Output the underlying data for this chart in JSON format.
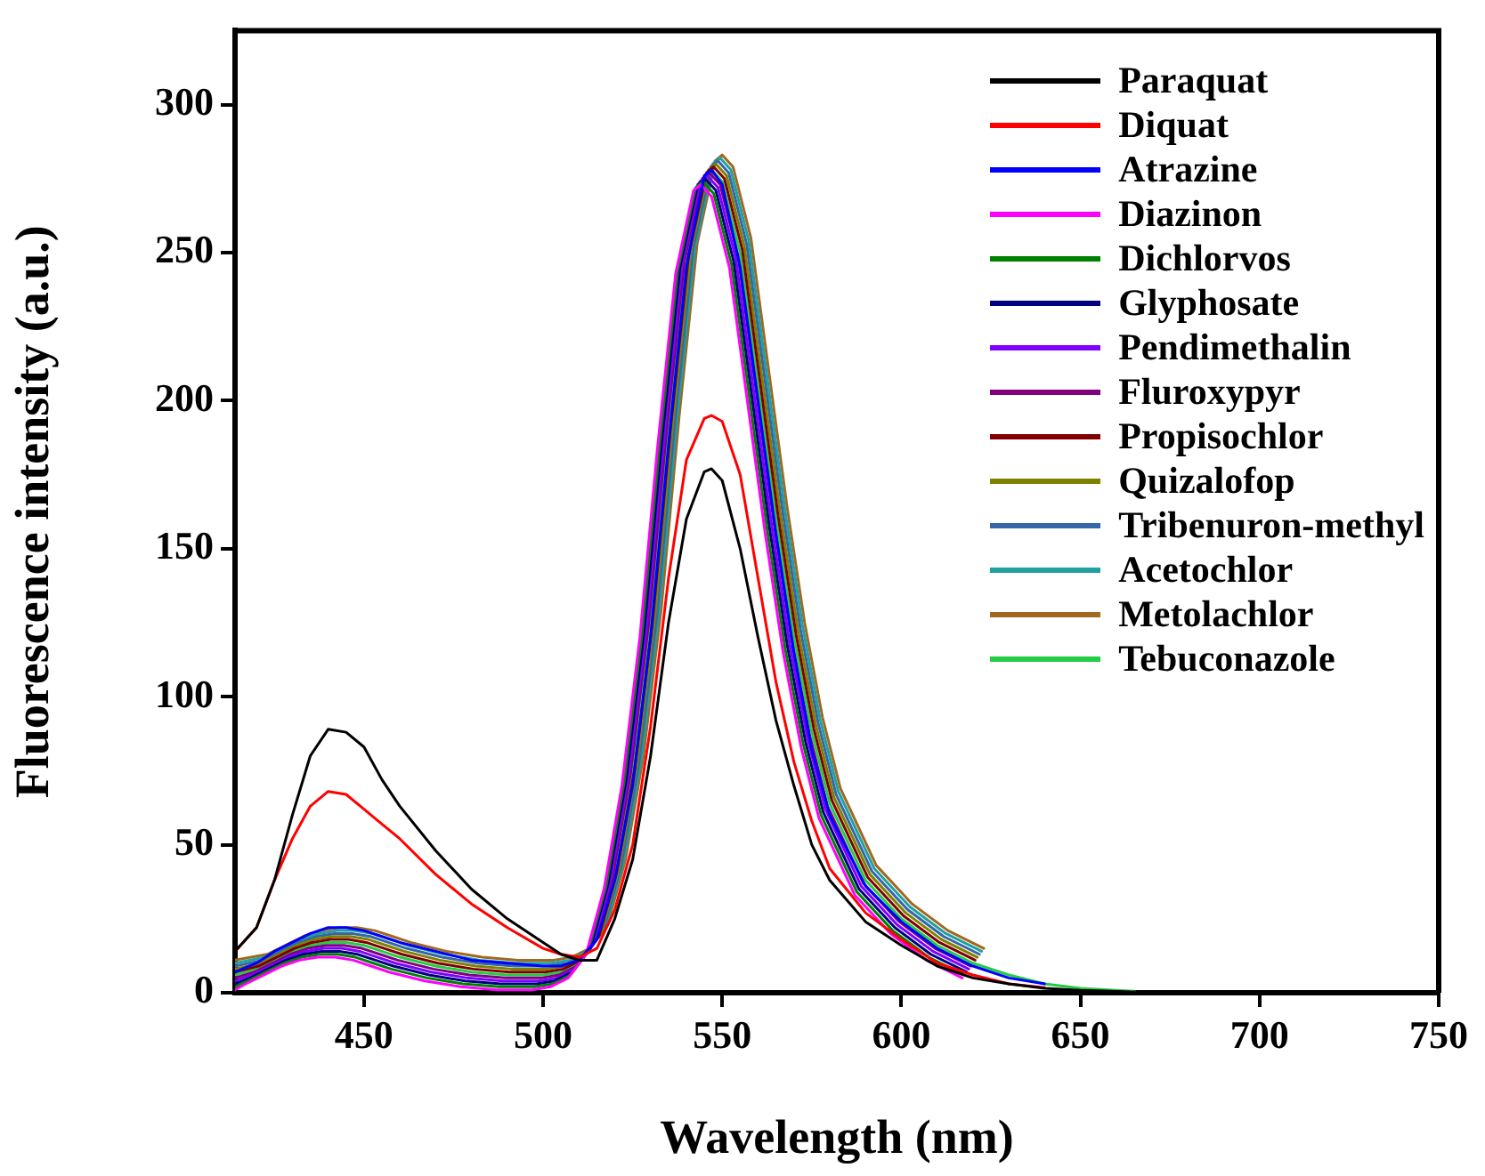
{
  "chart_data": {
    "type": "line",
    "xlabel": "Wavelength (nm)",
    "ylabel": "Fluorescence intensity (a.u.)",
    "xlim": [
      414,
      750
    ],
    "xticks": [
      450,
      500,
      550,
      600,
      650,
      700,
      750
    ],
    "ylim": [
      0,
      325
    ],
    "yticks": [
      0,
      50,
      100,
      150,
      200,
      250,
      300
    ],
    "grid": false,
    "legend": "top right",
    "marker": "none",
    "line_style": "solid",
    "x": [
      414,
      420,
      425,
      430,
      435,
      440,
      445,
      450,
      455,
      460,
      470,
      480,
      490,
      500,
      505,
      510,
      515,
      520,
      525,
      530,
      535,
      540,
      545,
      547,
      550,
      555,
      560,
      565,
      570,
      575,
      580,
      590,
      600,
      610,
      620,
      630,
      640,
      650,
      665
    ],
    "series": [
      {
        "name": "Paraquat",
        "color": "#000000",
        "values": [
          14,
          22,
          38,
          60,
          80,
          89,
          88,
          83,
          72,
          63,
          48,
          35,
          25,
          17,
          13,
          11,
          11,
          25,
          45,
          80,
          125,
          160,
          176,
          177,
          173,
          150,
          120,
          92,
          70,
          50,
          38,
          24,
          16,
          9,
          5,
          3,
          1.5,
          0.8,
          0.3
        ]
      },
      {
        "name": "Diquat",
        "color": "#ff0000",
        "values": [
          14,
          22,
          38,
          52,
          63,
          68,
          67,
          62,
          57,
          52,
          40,
          30,
          22,
          15,
          13,
          12,
          15,
          28,
          50,
          90,
          140,
          180,
          194,
          195,
          193,
          175,
          140,
          105,
          78,
          58,
          42,
          27,
          18,
          10,
          6,
          3,
          1.7,
          null,
          null
        ]
      },
      {
        "name": "Atrazine",
        "color": "#0000ff",
        "values": [
          7,
          10,
          14,
          17,
          20,
          22,
          22,
          21,
          19,
          17,
          14,
          11,
          10,
          9,
          9,
          11,
          18,
          38,
          70,
          120,
          185,
          245,
          276,
          278,
          273,
          245,
          200,
          155,
          115,
          82,
          60,
          36,
          24,
          15,
          9,
          5,
          3,
          null,
          null
        ]
      },
      {
        "name": "Diazinon",
        "color": "#ff00ff",
        "x": [
          414,
          417,
          422,
          427,
          432,
          437,
          442,
          447,
          452,
          457,
          467,
          477,
          487,
          497,
          502,
          507,
          512,
          517,
          522,
          527,
          532,
          537,
          542,
          544,
          547,
          552,
          557,
          562,
          567,
          572,
          577,
          587,
          597,
          607,
          617
        ],
        "values": [
          1,
          3,
          6,
          9,
          11,
          12,
          12,
          11,
          9,
          7,
          4,
          2,
          1,
          1,
          2,
          5,
          13,
          35,
          70,
          120,
          185,
          243,
          271,
          273,
          269,
          245,
          200,
          155,
          115,
          83,
          59,
          33,
          20,
          11,
          5
        ]
      },
      {
        "name": "Dichlorvos",
        "color": "#008000",
        "x": [
          414,
          417.6,
          422.6,
          427.6,
          432.6,
          437.6,
          442.6,
          447.6,
          452.6,
          457.6,
          467.6,
          477.6,
          487.6,
          497.6,
          502.6,
          507.6,
          512.6,
          517.6,
          522.6,
          527.6,
          532.6,
          537.6,
          542.6,
          544.6,
          547.6,
          552.6,
          557.6,
          562.6,
          567.6,
          572.6,
          577.6,
          587.6,
          597.6,
          607.6,
          617.6
        ],
        "values": [
          2,
          4,
          7,
          10,
          12,
          13,
          13,
          12,
          10,
          8,
          5,
          3,
          2,
          2,
          3,
          6,
          14,
          36,
          71,
          121,
          186,
          244,
          272,
          274,
          270,
          246,
          201,
          156,
          116,
          84,
          60,
          34,
          21,
          12,
          6
        ]
      },
      {
        "name": "Glyphosate",
        "color": "#000080",
        "x": [
          414,
          418.2,
          423.2,
          428.2,
          433.2,
          438.2,
          443.2,
          448.2,
          453.2,
          458.2,
          468.2,
          478.2,
          488.2,
          498.2,
          503.2,
          508.2,
          513.2,
          518.2,
          523.2,
          528.2,
          533.2,
          538.2,
          543.2,
          545.2,
          548.2,
          553.2,
          558.2,
          563.2,
          568.2,
          573.2,
          578.2,
          588.2,
          598.2,
          608.2,
          618.2
        ],
        "values": [
          3,
          5,
          8,
          11,
          13,
          14,
          14,
          13,
          11,
          9,
          6,
          4,
          3,
          3,
          4,
          7,
          15,
          37,
          72,
          122,
          187,
          245,
          273,
          275,
          271,
          247,
          202,
          157,
          117,
          85,
          61,
          35,
          22,
          13,
          7
        ]
      },
      {
        "name": "Pendimethalin",
        "color": "#8000ff",
        "x": [
          414,
          418.8,
          423.8,
          428.8,
          433.8,
          438.8,
          443.8,
          448.8,
          453.8,
          458.8,
          468.8,
          478.8,
          488.8,
          498.8,
          503.8,
          508.8,
          513.8,
          518.8,
          523.8,
          528.8,
          533.8,
          538.8,
          543.8,
          545.8,
          548.8,
          553.8,
          558.8,
          563.8,
          568.8,
          573.8,
          578.8,
          588.8,
          598.8,
          608.8,
          618.8
        ],
        "values": [
          4,
          6,
          9,
          12,
          14,
          15,
          15,
          14,
          12,
          10,
          7,
          5,
          4,
          4,
          5,
          8,
          16,
          38,
          73,
          123,
          188,
          246,
          274,
          276,
          272,
          248,
          203,
          158,
          118,
          86,
          62,
          36,
          23,
          14,
          8
        ]
      },
      {
        "name": "Fluroxypyr",
        "color": "#800080",
        "x": [
          414,
          419.4,
          424.4,
          429.4,
          434.4,
          439.4,
          444.4,
          449.4,
          454.4,
          459.4,
          469.4,
          479.4,
          489.4,
          499.4,
          504.4,
          509.4,
          514.4,
          519.4,
          524.4,
          529.4,
          534.4,
          539.4,
          544.4,
          546.4,
          549.4,
          554.4,
          559.4,
          564.4,
          569.4,
          574.4,
          579.4,
          589.4,
          599.4,
          609.4,
          619.4
        ],
        "values": [
          5,
          7,
          10,
          13,
          15,
          16,
          16,
          15,
          13,
          11,
          8,
          6,
          5,
          5,
          6,
          9,
          17,
          39,
          74,
          124,
          189,
          247,
          275,
          277,
          273,
          249,
          204,
          159,
          119,
          87,
          63,
          37,
          24,
          15,
          9
        ]
      },
      {
        "name": "Propisochlor",
        "color": "#800000",
        "x": [
          414,
          420.6,
          425.6,
          430.6,
          435.6,
          440.6,
          445.6,
          450.6,
          455.6,
          460.6,
          470.6,
          480.6,
          490.6,
          500.6,
          505.6,
          510.6,
          515.6,
          520.6,
          525.6,
          530.6,
          535.6,
          540.6,
          545.6,
          547.6,
          550.6,
          555.6,
          560.6,
          565.6,
          570.6,
          575.6,
          580.6,
          590.6,
          600.6,
          610.6,
          620.6
        ],
        "values": [
          7,
          9,
          12,
          15,
          17,
          18,
          18,
          17,
          15,
          13,
          10,
          8,
          7,
          7,
          8,
          11,
          19,
          41,
          76,
          126,
          191,
          249,
          277,
          279,
          275,
          251,
          206,
          161,
          121,
          89,
          65,
          39,
          26,
          17,
          11
        ]
      },
      {
        "name": "Quizalofop",
        "color": "#808000",
        "x": [
          414,
          421.2,
          426.2,
          431.2,
          436.2,
          441.2,
          446.2,
          451.2,
          456.2,
          461.2,
          471.2,
          481.2,
          491.2,
          501.2,
          506.2,
          511.2,
          516.2,
          521.2,
          526.2,
          531.2,
          536.2,
          541.2,
          546.2,
          548.2,
          551.2,
          556.2,
          561.2,
          566.2,
          571.2,
          576.2,
          581.2,
          591.2,
          601.2,
          611.2,
          621.2
        ],
        "values": [
          8,
          10,
          13,
          16,
          18,
          19,
          19,
          18,
          16,
          14,
          11,
          9,
          8,
          8,
          9,
          12,
          20,
          42,
          77,
          127,
          192,
          250,
          278,
          280,
          276,
          252,
          207,
          162,
          122,
          90,
          66,
          40,
          27,
          18,
          12
        ]
      },
      {
        "name": "Tribenuron-methyl",
        "color": "#3366aa",
        "x": [
          414,
          421.8,
          426.8,
          431.8,
          436.8,
          441.8,
          446.8,
          451.8,
          456.8,
          461.8,
          471.8,
          481.8,
          491.8,
          501.8,
          506.8,
          511.8,
          516.8,
          521.8,
          526.8,
          531.8,
          536.8,
          541.8,
          546.8,
          548.8,
          551.8,
          556.8,
          561.8,
          566.8,
          571.8,
          576.8,
          581.8,
          591.8,
          601.8,
          611.8,
          621.8
        ],
        "values": [
          9,
          11,
          14,
          17,
          19,
          20,
          20,
          19,
          17,
          15,
          12,
          10,
          9,
          9,
          10,
          13,
          21,
          43,
          78,
          128,
          193,
          251,
          279,
          281,
          277,
          253,
          208,
          163,
          123,
          91,
          67,
          41,
          28,
          19,
          13
        ]
      },
      {
        "name": "Acetochlor",
        "color": "#20a0a0",
        "x": [
          414,
          422.4,
          427.4,
          432.4,
          437.4,
          442.4,
          447.4,
          452.4,
          457.4,
          462.4,
          472.4,
          482.4,
          492.4,
          502.4,
          507.4,
          512.4,
          517.4,
          522.4,
          527.4,
          532.4,
          537.4,
          542.4,
          547.4,
          549.4,
          552.4,
          557.4,
          562.4,
          567.4,
          572.4,
          577.4,
          582.4,
          592.4,
          602.4,
          612.4,
          622.4
        ],
        "values": [
          10,
          12,
          15,
          18,
          20,
          21,
          21,
          20,
          18,
          16,
          13,
          11,
          10,
          10,
          11,
          14,
          22,
          44,
          79,
          129,
          194,
          252,
          280,
          282,
          278,
          254,
          209,
          164,
          124,
          92,
          68,
          42,
          29,
          20,
          14
        ]
      },
      {
        "name": "Metolachlor",
        "color": "#a06820",
        "x": [
          414,
          423,
          428,
          433,
          438,
          443,
          448,
          453,
          458,
          463,
          473,
          483,
          493,
          503,
          508,
          513,
          518,
          523,
          528,
          533,
          538,
          543,
          548,
          550,
          553,
          558,
          563,
          568,
          573,
          578,
          583,
          593,
          603,
          613,
          623
        ],
        "values": [
          11,
          13,
          16,
          19,
          21,
          22,
          22,
          21,
          19,
          17,
          14,
          12,
          11,
          11,
          12,
          15,
          23,
          45,
          80,
          130,
          195,
          253,
          281,
          283,
          279,
          255,
          210,
          165,
          125,
          93,
          69,
          43,
          30,
          21,
          15
        ]
      },
      {
        "name": "Tebuconazole",
        "color": "#22cc44",
        "values": [
          6,
          8,
          11,
          14,
          16,
          17,
          17,
          16,
          14,
          12,
          9,
          7,
          6,
          6,
          7,
          10,
          18,
          40,
          75,
          125,
          190,
          248,
          276,
          278,
          274,
          250,
          205,
          160,
          120,
          88,
          64,
          38,
          25,
          16,
          10,
          6,
          3,
          1.5,
          0.5
        ]
      }
    ]
  }
}
